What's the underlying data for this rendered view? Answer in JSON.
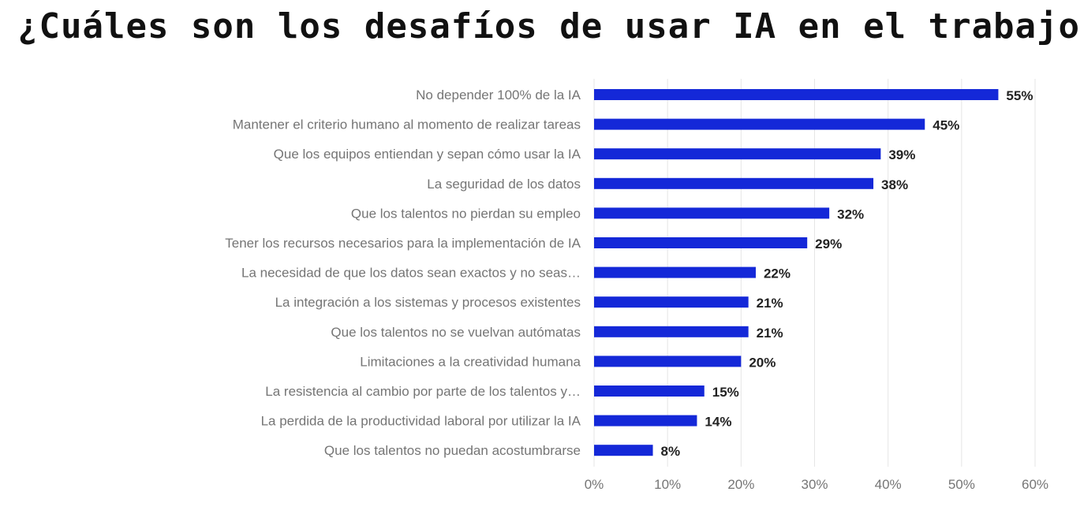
{
  "title": "¿Cuáles son los desafíos de usar IA en el trabajo?",
  "chart_data": {
    "type": "bar",
    "orientation": "horizontal",
    "categories": [
      "No depender 100% de la IA",
      "Mantener el criterio humano al momento de realizar tareas",
      "Que los equipos entiendan y sepan cómo usar la IA",
      "La seguridad de los datos",
      "Que los talentos no pierdan su empleo",
      "Tener los recursos necesarios para la implementación de IA",
      "La necesidad de que los datos sean exactos y no seas…",
      "La integración a los sistemas y procesos existentes",
      "Que los talentos no se vuelvan autómatas",
      "Limitaciones a la creatividad humana",
      "La resistencia al cambio por parte de los talentos y…",
      "La perdida de la productividad laboral por utilizar la IA",
      "Que los talentos no puedan acostumbrarse"
    ],
    "values": [
      55,
      45,
      39,
      38,
      32,
      29,
      22,
      21,
      21,
      20,
      15,
      14,
      8
    ],
    "value_labels": [
      "55%",
      "45%",
      "39%",
      "38%",
      "32%",
      "29%",
      "22%",
      "21%",
      "21%",
      "20%",
      "15%",
      "14%",
      "8%"
    ],
    "xlim": [
      0,
      60
    ],
    "x_ticks": [
      0,
      10,
      20,
      30,
      40,
      50,
      60
    ],
    "x_tick_labels": [
      "0%",
      "10%",
      "20%",
      "30%",
      "40%",
      "50%",
      "60%"
    ],
    "xlabel": "",
    "ylabel": "",
    "grid": true,
    "legend": "none",
    "colors": {
      "bar": "#1428d8",
      "grid": "#e6e6e6",
      "category_text": "#757575",
      "value_text": "#222222",
      "title_text": "#111111"
    }
  }
}
